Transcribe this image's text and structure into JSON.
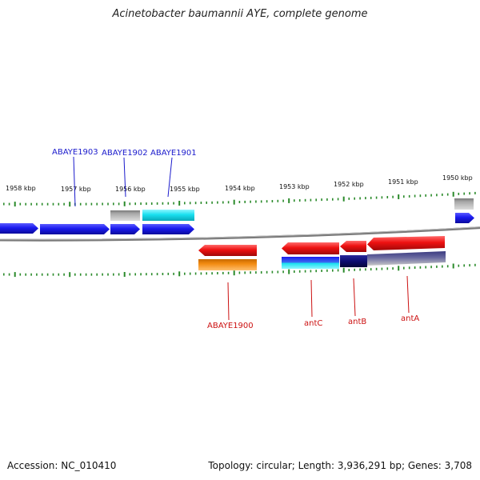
{
  "title": "Acinetobacter baumannii AYE, complete genome",
  "accession": "Accession: NC_010410",
  "summary": "Topology: circular; Length: 3,936,291 bp; Genes: 3,708",
  "colors": {
    "blue": "#1a1aee",
    "cyan": "#19e0f0",
    "grey": "#a8a8a8",
    "red": "#ee1111",
    "orange": "#f28a10",
    "navy": "#0c0c70",
    "slate": "#4a4a88",
    "tick": "#2a8a2a",
    "backbone": "#808080"
  },
  "scale": {
    "ticks": [
      "1958 kbp",
      "1957 kbp",
      "1956 kbp",
      "1955 kbp",
      "1954 kbp",
      "1953 kbp",
      "1952 kbp",
      "1951 kbp",
      "1950 kbp"
    ]
  },
  "features": {
    "top_genes": [
      {
        "name": "top-gene-1",
        "color": "blue"
      },
      {
        "name": "top-gene-2",
        "color": "blue"
      },
      {
        "name": "top-gene-3",
        "color": "blue"
      },
      {
        "name": "top-gene-4",
        "color": "blue"
      },
      {
        "name": "top-gene-5",
        "color": "blue"
      },
      {
        "name": "top-gene-6",
        "color": "blue"
      },
      {
        "name": "top-cds-1",
        "color": "grey"
      },
      {
        "name": "top-cds-2",
        "color": "cyan"
      },
      {
        "name": "top-cds-3",
        "color": "grey"
      }
    ],
    "bottom_genes": [
      {
        "name": "bottom-gene-1",
        "color": "red"
      },
      {
        "name": "bottom-cds-1",
        "color": "orange"
      },
      {
        "name": "bottom-gene-2",
        "color": "red"
      },
      {
        "name": "bottom-gene-3",
        "color": "red"
      },
      {
        "name": "bottom-gene-4",
        "color": "red"
      },
      {
        "name": "bottom-cds-2",
        "color": "blue"
      },
      {
        "name": "bottom-cds-3",
        "color": "navy"
      },
      {
        "name": "bottom-cds-4",
        "color": "slate"
      }
    ]
  },
  "labels": {
    "top": [
      "ABAYE1903",
      "ABAYE1902",
      "ABAYE1901"
    ],
    "bottom": [
      "ABAYE1900",
      "antC",
      "antB",
      "antA"
    ]
  }
}
